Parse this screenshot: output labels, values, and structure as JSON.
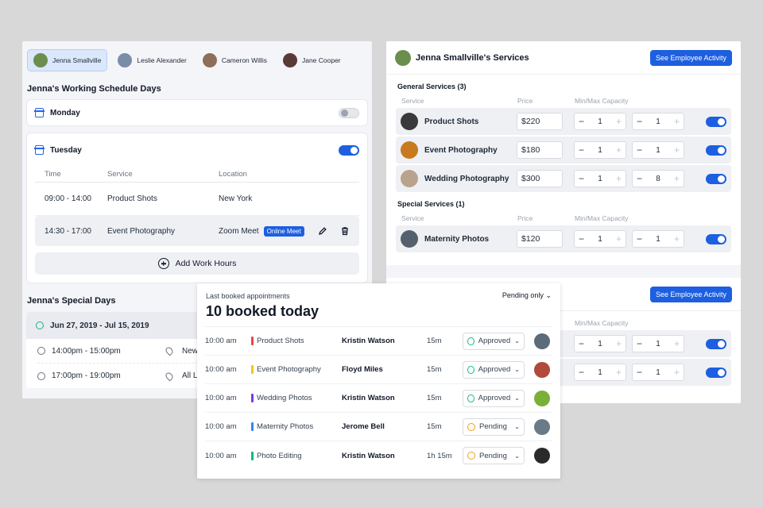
{
  "employees": [
    {
      "name": "Jenna Smallville",
      "active": true,
      "color": "#6b8e4e"
    },
    {
      "name": "Leslie Alexander",
      "active": false,
      "color": "#7a8ca8"
    },
    {
      "name": "Cameron Willis",
      "active": false,
      "color": "#8c6e5a"
    },
    {
      "name": "Jane Cooper",
      "active": false,
      "color": "#5a3a36"
    }
  ],
  "schedule": {
    "title": "Jenna's Working Schedule Days",
    "monday": {
      "label": "Monday",
      "enabled": false
    },
    "tuesday": {
      "label": "Tuesday",
      "enabled": true,
      "columns": {
        "time": "Time",
        "service": "Service",
        "location": "Location"
      },
      "rows": [
        {
          "time": "09:00 - 14:00",
          "service": "Product Shots",
          "location": "New York",
          "badge": ""
        },
        {
          "time": "14:30 - 17:00",
          "service": "Event Photography",
          "location": "Zoom Meet",
          "badge": "Online Meet"
        }
      ],
      "add_label": "Add Work Hours"
    }
  },
  "special": {
    "title": "Jenna's Special Days",
    "range": "Jun 27, 2019 - Jul 15, 2019",
    "rows": [
      {
        "time": "14:00pm - 15:00pm",
        "location": "New York"
      },
      {
        "time": "17:00pm - 19:00pm",
        "location": "All Locatio"
      }
    ]
  },
  "services": {
    "title": "Jenna Smallville's Services",
    "activity_button": "See Employee Activity",
    "general_title": "General Services (3)",
    "special_title": "Special Services (1)",
    "columns": {
      "service": "Service",
      "price": "Price",
      "capacity": "Min/Max Capacity"
    },
    "general": [
      {
        "name": "Product Shots",
        "price": "$220",
        "min": "1",
        "max": "1",
        "color": "#3a3a3a"
      },
      {
        "name": "Event Photography",
        "price": "$180",
        "min": "1",
        "max": "1",
        "color": "#c77a1e"
      },
      {
        "name": "Wedding Photography",
        "price": "$300",
        "min": "1",
        "max": "8",
        "color": "#b9a38e"
      }
    ],
    "special": [
      {
        "name": "Maternity Photos",
        "price": "$120",
        "min": "1",
        "max": "1",
        "color": "#55606e"
      }
    ]
  },
  "lower_card": {
    "activity_button": "See Employee Activity",
    "capacity_label": "Min/Max Capacity",
    "rows": [
      {
        "min": "1",
        "max": "1"
      },
      {
        "min": "1",
        "max": "1"
      }
    ]
  },
  "appointments": {
    "heading": "Last booked appointments",
    "filter": "Pending only",
    "summary": "10 booked today",
    "rows": [
      {
        "time": "10:00 am",
        "service": "Product Shots",
        "bar": "#ef4444",
        "client": "Kristin Watson",
        "duration": "15m",
        "status": "Approved",
        "pending": false,
        "avatar": "#5b6b7a"
      },
      {
        "time": "10:00 am",
        "service": "Event Photography",
        "bar": "#f5c518",
        "client": "Floyd Miles",
        "duration": "15m",
        "status": "Approved",
        "pending": false,
        "avatar": "#b04a3a"
      },
      {
        "time": "10:00 am",
        "service": "Wedding Photos",
        "bar": "#7c3aed",
        "client": "Kristin Watson",
        "duration": "15m",
        "status": "Approved",
        "pending": false,
        "avatar": "#7ab03a"
      },
      {
        "time": "10:00 am",
        "service": "Maternity Photos",
        "bar": "#3b82f6",
        "client": "Jerome Bell",
        "duration": "15m",
        "status": "Pending",
        "pending": true,
        "avatar": "#6a7a86"
      },
      {
        "time": "10:00 am",
        "service": "Photo Editing",
        "bar": "#10b981",
        "client": "Kristin Watson",
        "duration": "1h 15m",
        "status": "Pending",
        "pending": true,
        "avatar": "#2a2a2a"
      }
    ]
  }
}
